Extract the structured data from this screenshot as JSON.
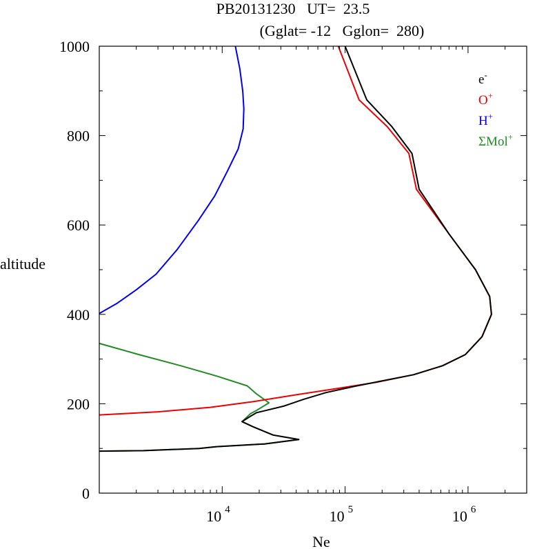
{
  "chart_data": {
    "type": "line",
    "title_line1": "PB20131230   UT=  23.5",
    "title_line2": "(Gglat= -12   Gglon=  280)",
    "xlabel": "Ne",
    "ylabel": "altitude",
    "xscale": "log",
    "xlim": [
      1000,
      3000000
    ],
    "ylim": [
      0,
      1000
    ],
    "grid": false,
    "legend_position": "top-right",
    "y_ticks": [
      {
        "value": 0,
        "label": "0"
      },
      {
        "value": 200,
        "label": "200"
      },
      {
        "value": 400,
        "label": "400"
      },
      {
        "value": 600,
        "label": "600"
      },
      {
        "value": 800,
        "label": "800"
      },
      {
        "value": 1000,
        "label": "1000"
      }
    ],
    "x_ticks": [
      {
        "value": 10000,
        "base": "10",
        "exp": "4"
      },
      {
        "value": 100000,
        "base": "10",
        "exp": "5"
      },
      {
        "value": 1000000,
        "base": "10",
        "exp": "6"
      }
    ],
    "series": [
      {
        "name": "ΣMol",
        "sup": "+",
        "color": "#228b22",
        "points": [
          [
            1000,
            335
          ],
          [
            2100,
            310
          ],
          [
            4600,
            285
          ],
          [
            9000,
            262
          ],
          [
            16000,
            240
          ],
          [
            19000,
            222
          ],
          [
            24000,
            202
          ],
          [
            19000,
            185
          ],
          [
            17000,
            178
          ],
          [
            14500,
            160
          ],
          [
            18000,
            148
          ],
          [
            26000,
            130
          ],
          [
            42000,
            120
          ],
          [
            22000,
            110
          ],
          [
            9000,
            104
          ],
          [
            6500,
            100
          ],
          [
            2300,
            95
          ],
          [
            1000,
            94
          ]
        ]
      },
      {
        "name": "H",
        "sup": "+",
        "color": "#0000ee",
        "points": [
          [
            1000,
            402
          ],
          [
            1400,
            425
          ],
          [
            2000,
            455
          ],
          [
            2900,
            490
          ],
          [
            4300,
            545
          ],
          [
            6400,
            610
          ],
          [
            8700,
            665
          ],
          [
            11000,
            720
          ],
          [
            13500,
            770
          ],
          [
            14800,
            815
          ],
          [
            15000,
            860
          ],
          [
            14700,
            900
          ],
          [
            13900,
            950
          ],
          [
            12800,
            1000
          ]
        ]
      },
      {
        "name": "O",
        "sup": "+",
        "color": "#ee0000",
        "points": [
          [
            1000,
            175
          ],
          [
            3000,
            182
          ],
          [
            8000,
            192
          ],
          [
            18000,
            205
          ],
          [
            40000,
            220
          ],
          [
            90000,
            235
          ],
          [
            180000,
            248
          ],
          [
            360000,
            265
          ],
          [
            620000,
            285
          ],
          [
            950000,
            310
          ],
          [
            1300000,
            350
          ],
          [
            1550000,
            400
          ],
          [
            1500000,
            440
          ],
          [
            1150000,
            500
          ],
          [
            700000,
            580
          ],
          [
            380000,
            680
          ],
          [
            330000,
            760
          ],
          [
            220000,
            820
          ],
          [
            130000,
            880
          ],
          [
            88000,
            1000
          ]
        ]
      },
      {
        "name": "e",
        "sup": "-",
        "color": "#000000",
        "points": [
          [
            1000,
            94
          ],
          [
            2300,
            95
          ],
          [
            6500,
            100
          ],
          [
            9000,
            104
          ],
          [
            22000,
            110
          ],
          [
            42000,
            120
          ],
          [
            26000,
            130
          ],
          [
            18000,
            148
          ],
          [
            14500,
            160
          ],
          [
            17000,
            172
          ],
          [
            19000,
            180
          ],
          [
            32000,
            195
          ],
          [
            46000,
            210
          ],
          [
            70000,
            225
          ],
          [
            115000,
            238
          ],
          [
            190000,
            250
          ],
          [
            360000,
            265
          ],
          [
            620000,
            285
          ],
          [
            950000,
            310
          ],
          [
            1300000,
            350
          ],
          [
            1550000,
            400
          ],
          [
            1500000,
            440
          ],
          [
            1150000,
            500
          ],
          [
            700000,
            580
          ],
          [
            400000,
            680
          ],
          [
            350000,
            760
          ],
          [
            240000,
            820
          ],
          [
            150000,
            880
          ],
          [
            100000,
            1000
          ]
        ]
      }
    ]
  }
}
